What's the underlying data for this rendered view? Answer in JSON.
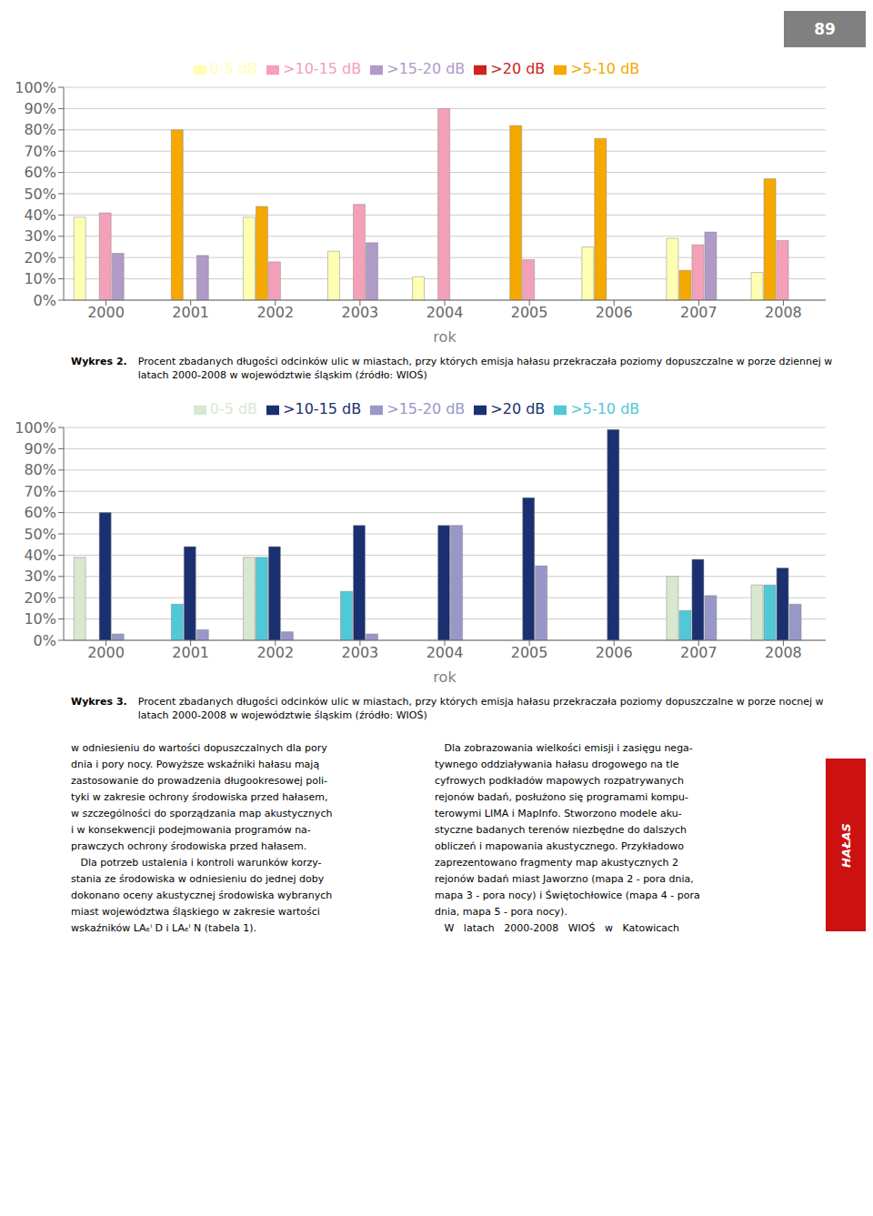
{
  "chart_data": [
    {
      "type": "bar",
      "title": "Wykres 2.",
      "subtitle": "Procent zbadanych długości odcinków ulic w miastach, przy których emisja hałasu przekraczała poziomy dopuszczalne w porze dziennej w latach 2000-2008 w województwie śląskim (źródło: WIOŚ)",
      "x_label": "rok",
      "categories": [
        "2000",
        "2001",
        "2002",
        "2003",
        "2004",
        "2005",
        "2006",
        "2007",
        "2008"
      ],
      "series": [
        {
          "name": "0-5 dB",
          "color": "#FFFFB3",
          "values": [
            39,
            0,
            39,
            23,
            11,
            0,
            25,
            29,
            13
          ]
        },
        {
          "name": ">5-10 dB",
          "color": "#F5A800",
          "values": [
            0,
            80,
            44,
            0,
            0,
            82,
            76,
            14,
            57
          ]
        },
        {
          "name": ">10-15 dB",
          "color": "#F4A0B8",
          "values": [
            41,
            0,
            18,
            45,
            90,
            19,
            0,
            26,
            28
          ]
        },
        {
          "name": ">15-20 dB",
          "color": "#B09AC8",
          "values": [
            22,
            21,
            0,
            27,
            0,
            0,
            0,
            32,
            0
          ]
        },
        {
          "name": ">20 dB",
          "color": "#CC2222",
          "values": [
            0,
            0,
            0,
            0,
            0,
            0,
            0,
            0,
            0
          ]
        }
      ],
      "ylim": [
        0,
        100
      ],
      "yticks": [
        {
          "value": 0,
          "label": "0%"
        },
        {
          "value": 10,
          "label": "10%"
        },
        {
          "value": 20,
          "label": "20%"
        },
        {
          "value": 30,
          "label": "30%"
        },
        {
          "value": 40,
          "label": "40%"
        },
        {
          "value": 50,
          "label": "50%"
        },
        {
          "value": 60,
          "label": "60%"
        },
        {
          "value": 70,
          "label": "70%"
        },
        {
          "value": 80,
          "label": "80%"
        },
        {
          "value": 90,
          "label": "90%"
        },
        {
          "value": 100,
          "label": "100%"
        }
      ],
      "grid": true,
      "legend": "top"
    },
    {
      "type": "bar",
      "title": "Wykres 3.",
      "subtitle": "Procent zbadanych długości odcinków ulic w miastach, przy których emisja hałasu przekraczała poziomy dopuszczalne w porze nocnej w latach 2000-2008 w województwie śląskim (źródło: WIOŚ)",
      "x_label": "rok",
      "categories": [
        "2000",
        "2001",
        "2002",
        "2003",
        "2004",
        "2005",
        "2006",
        "2007",
        "2008"
      ],
      "series": [
        {
          "name": "0-5 dB",
          "color": "#D8E8D0",
          "values": [
            39,
            0,
            39,
            0,
            0,
            0,
            0,
            30,
            26
          ]
        },
        {
          "name": ">5-10 dB",
          "color": "#50C8D8",
          "values": [
            0,
            17,
            39,
            23,
            0,
            0,
            0,
            14,
            26
          ]
        },
        {
          "name": ">10-15 dB",
          "color": "#1A3070",
          "values": [
            60,
            44,
            44,
            54,
            54,
            67,
            99,
            38,
            34
          ]
        },
        {
          "name": ">15-20 dB",
          "color": "#9898C8",
          "values": [
            3,
            5,
            4,
            3,
            54,
            35,
            0,
            21,
            17
          ]
        },
        {
          "name": ">20 dB",
          "color": "#1A3070",
          "values": [
            0,
            0,
            0,
            0,
            0,
            0,
            0,
            0,
            0
          ]
        }
      ],
      "ylim": [
        0,
        100
      ],
      "yticks": [
        {
          "value": 0,
          "label": "0%"
        },
        {
          "value": 10,
          "label": "10%"
        },
        {
          "value": 20,
          "label": "20%"
        },
        {
          "value": 30,
          "label": "30%"
        },
        {
          "value": 40,
          "label": "40%"
        },
        {
          "value": 50,
          "label": "50%"
        },
        {
          "value": 60,
          "label": "60%"
        },
        {
          "value": 70,
          "label": "70%"
        },
        {
          "value": 80,
          "label": "80%"
        },
        {
          "value": 90,
          "label": "90%"
        },
        {
          "value": 100,
          "label": "100%"
        }
      ],
      "grid": true,
      "legend": "top",
      "annotations": [
        "89",
        "HAŁAS",
        "w odniesieniu do wartości dopuszczalnych dla pory\ndnia i pory nocy. Powyższe wskaźniki hałasu mają\nzastosowanie do prowadzenia długookresowej poli-\ntyki w zakresie ochrony środowiska przed hałasem,\nw szczególności do sporządzania map akustycznych\ni w konsekwencji podejmowania programów na-\nprawczych ochrony środowiska przed hałasem.\n   Dla potrzeb ustalenia i kontroli warunków korzy-\nstania ze środowiska w odniesieniu do jednej doby\ndokonano oceny akustycznej środowiska wybranych\nmiast województwa śląskiego w zakresie wartości\nwskaźników LAₑⁱ D i LAₑⁱ N (tabela 1).",
        "   Dla zobrazowania wielkości emisji i zasięgu nega-\ntywnego oddziaływania hałasu drogowego na tle\ncyfrowych podkładów mapowych rozpatrywanych\nrejonów badań, posłużono się programami kompu-\nterowymi LIMA i MapInfo. Stworzono modele aku-\nstyczne badanych terenów niezbędne do dalszych\nobliczeń i mapowania akustycznego. Przykładowo\nzaprezentowano fragmenty map akustycznych 2\nrejonów badań miast Jaworzno (mapa 2 - pora dnia,\nmapa 3 - pora nocy) i Świętochłowice (mapa 4 - pora\ndnia, mapa 5 - pora nocy).\n   W   latach   2000-2008   WIOŚ   w   Katowicach"
      ]
    }
  ]
}
